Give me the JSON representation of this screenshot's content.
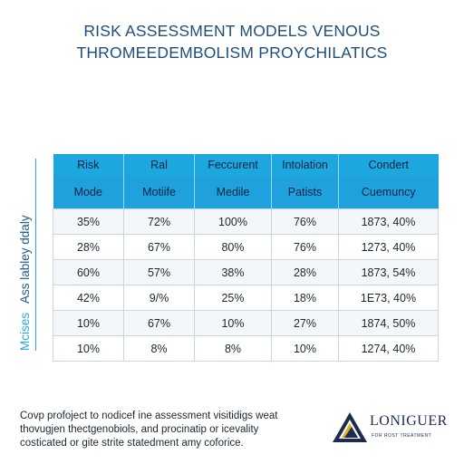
{
  "title": {
    "line1": "RISK ASSESSMENT MODELS VENOUS",
    "line2": "THROMEEDEMBOLISM PROYCHILATICS"
  },
  "side_label": {
    "main": "Ass labley ddaly",
    "accent": "Mcises"
  },
  "table": {
    "header_row1": [
      "Risk",
      "Ral",
      "Feccurent",
      "Intolation",
      "Condert"
    ],
    "header_row2": [
      "Mode",
      "Motiife",
      "Medile",
      "Patists",
      "Cuemuncy"
    ],
    "rows": [
      [
        "35%",
        "72%",
        "100%",
        "76%",
        "1873, 40%"
      ],
      [
        "28%",
        "67%",
        "80%",
        "76%",
        "1273, 40%"
      ],
      [
        "60%",
        "57%",
        "38%",
        "28%",
        "1873, 54%"
      ],
      [
        "42%",
        "9/%",
        "25%",
        "18%",
        "1E73, 40%"
      ],
      [
        "10%",
        "67%",
        "10%",
        "27%",
        "1874, 50%"
      ],
      [
        "10%",
        "8%",
        "8%",
        "10%",
        "1274, 40%"
      ]
    ]
  },
  "footnote": {
    "line1": "Covp profoject to nodicef ine assessment visitidigs weat",
    "line2": "thovugjen thectgenobiols, and procinatip or icevality",
    "line3": "costicated or gite strite statedment amy coforice."
  },
  "logo": {
    "name": "LONIGUER",
    "tagline": "FOR ROST TREATMENT",
    "colors": {
      "triangle_dark": "#1b2c4f",
      "triangle_gold": "#e0b21f"
    }
  },
  "colors": {
    "header_blue": "#1da7df",
    "title_blue": "#1f4e79",
    "accent_cyan": "#2aa7d9"
  }
}
